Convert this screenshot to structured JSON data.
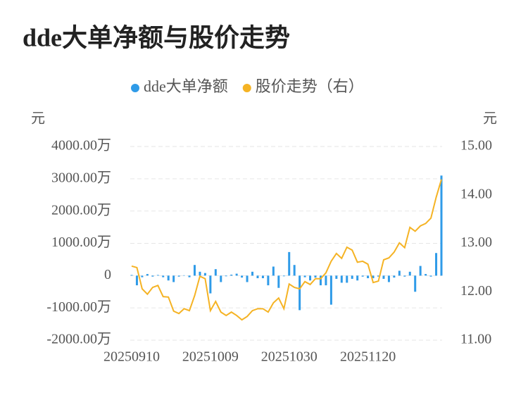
{
  "chart_data": {
    "type": "bar_line",
    "title": "dde大单净额与股价走势",
    "y_label": "元",
    "y2_label": "元",
    "categories": [
      "20250910",
      null,
      null,
      null,
      null,
      null,
      null,
      null,
      null,
      null,
      null,
      null,
      null,
      null,
      null,
      "20251009",
      null,
      null,
      null,
      null,
      null,
      null,
      null,
      null,
      null,
      null,
      null,
      null,
      null,
      null,
      "20251030",
      null,
      null,
      null,
      null,
      null,
      null,
      null,
      null,
      null,
      null,
      null,
      null,
      null,
      null,
      "20251120",
      null,
      null,
      null,
      null,
      null,
      null,
      null,
      null,
      null,
      null,
      null,
      null,
      null,
      null
    ],
    "series": [
      {
        "name": "dde大单净额",
        "color": "#2f9be8",
        "type": "bar",
        "values": [
          20,
          -300,
          -50,
          50,
          -30,
          20,
          -50,
          -150,
          -200,
          -30,
          10,
          -50,
          330,
          120,
          80,
          -550,
          200,
          -200,
          -20,
          30,
          60,
          -60,
          -200,
          120,
          -80,
          -80,
          -300,
          280,
          -380,
          -20,
          730,
          330,
          -1070,
          -50,
          -150,
          -60,
          -300,
          -300,
          -900,
          -100,
          -220,
          -220,
          -100,
          -150,
          -30,
          -80,
          -80,
          -30,
          -100,
          -200,
          -60,
          150,
          -30,
          120,
          -500,
          300,
          50,
          -30,
          700,
          3100
        ]
      },
      {
        "name": "股价走势（右）",
        "color": "#f5b324",
        "type": "line",
        "axis": "y2",
        "values": [
          12.53,
          12.5,
          12.06,
          11.95,
          12.09,
          12.13,
          11.9,
          11.89,
          11.6,
          11.55,
          11.65,
          11.61,
          11.92,
          12.32,
          12.27,
          11.61,
          11.8,
          11.58,
          11.51,
          11.58,
          11.51,
          11.42,
          11.49,
          11.61,
          11.65,
          11.65,
          11.58,
          11.77,
          11.87,
          11.65,
          12.16,
          12.09,
          12.06,
          12.21,
          12.15,
          12.27,
          12.27,
          12.39,
          12.63,
          12.79,
          12.69,
          12.92,
          12.86,
          12.61,
          12.63,
          12.57,
          12.19,
          12.22,
          12.66,
          12.7,
          12.82,
          13.01,
          12.91,
          13.33,
          13.25,
          13.36,
          13.41,
          13.52,
          13.95,
          14.32
        ]
      }
    ],
    "ylim": [
      -2000,
      4000
    ],
    "yticks": [
      {
        "value": -2000,
        "label": "-2000.00万"
      },
      {
        "value": -1000,
        "label": "-1000.00万"
      },
      0,
      {
        "value": 1000,
        "label": "1000.00万"
      },
      {
        "value": 2000,
        "label": "2000.00万"
      },
      {
        "value": 3000,
        "label": "3000.00万"
      },
      {
        "value": 4000,
        "label": "4000.00万"
      }
    ],
    "y2lim": [
      11,
      15
    ],
    "y2ticks": [
      {
        "value": 11,
        "label": "11.00"
      },
      {
        "value": 12,
        "label": "12.00"
      },
      {
        "value": 13,
        "label": "13.00"
      },
      {
        "value": 14,
        "label": "14.00"
      },
      {
        "value": 15,
        "label": "15.00"
      }
    ],
    "grid": true,
    "legend": "top"
  }
}
